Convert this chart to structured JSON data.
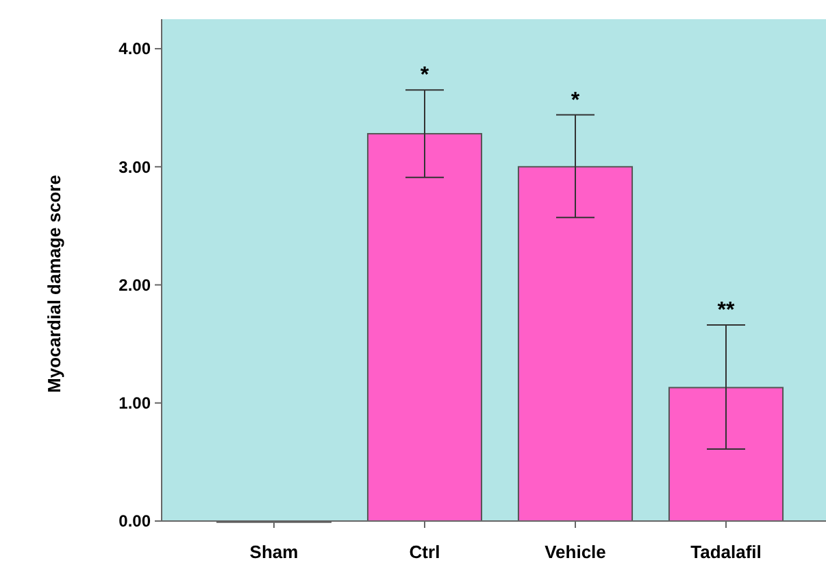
{
  "chart_data": {
    "type": "bar",
    "ylabel": "Myocardial damage score",
    "categories": [
      "Sham",
      "Ctrl",
      "Vehicle",
      "Tadalafil"
    ],
    "values": [
      0,
      3.28,
      3.0,
      1.13
    ],
    "errors": [
      null,
      [
        2.91,
        3.65
      ],
      [
        2.57,
        3.44
      ],
      [
        0.61,
        1.66
      ]
    ],
    "color": "#ff5fc8",
    "ylim": [
      0,
      4.25
    ],
    "yticks": [
      {
        "value": 0,
        "label": "0.00"
      },
      {
        "value": 1,
        "label": "1.00"
      },
      {
        "value": 2,
        "label": "2.00"
      },
      {
        "value": 3,
        "label": "3.00"
      },
      {
        "value": 4,
        "label": "4.00"
      }
    ],
    "annotations": [
      {
        "text": "*",
        "x": "Ctrl",
        "y": 3.65
      },
      {
        "text": "*",
        "x": "Vehicle",
        "y": 3.44
      },
      {
        "text": "**",
        "x": "Tadalafil",
        "y": 1.66
      }
    ],
    "grid": false
  }
}
